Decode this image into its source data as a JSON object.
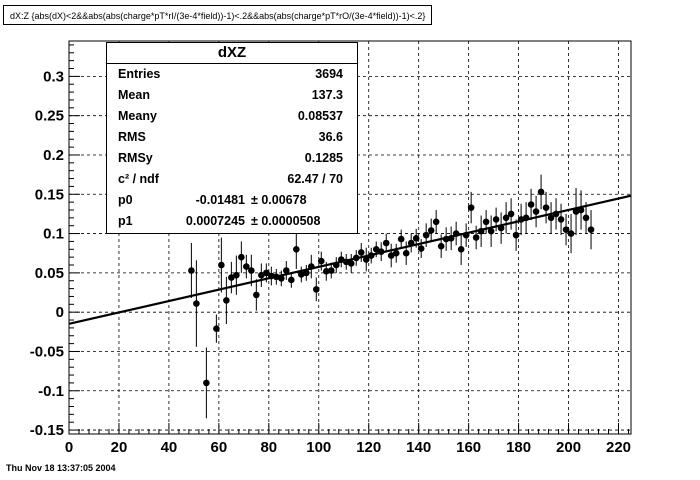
{
  "header": {
    "cut_title": "dX:Z {abs(dX)<2&&abs(abs(charge*pT*rI/(3e-4*field))-1)<.2&&abs(abs(charge*pT*rO/(3e-4*field))-1)<.2}"
  },
  "footer": {
    "timestamp": "Thu Nov 18 13:37:05 2004"
  },
  "stats": {
    "title": "dXZ",
    "entries_label": "Entries",
    "entries": "3694",
    "mean_label": "Mean",
    "mean": "137.3",
    "meany_label": "Meany",
    "meany": "0.08537",
    "rms_label": "RMS",
    "rms": "36.6",
    "rmsy_label": "RMSy",
    "rmsy": "0.1285",
    "chi2_label": "c² / ndf",
    "chi2": "62.47 / 70",
    "p0_label": "p0",
    "p0_value": "-0.01481",
    "p0_error": "± 0.00678",
    "p1_label": "p1",
    "p1_value": "0.0007245",
    "p1_error": "± 0.0000508"
  },
  "chart_data": {
    "type": "scatter",
    "xlim": [
      0,
      225
    ],
    "ylim": [
      -0.155,
      0.345
    ],
    "x_ticks": [
      0,
      20,
      40,
      60,
      80,
      100,
      120,
      140,
      160,
      180,
      200,
      220
    ],
    "y_ticks": [
      -0.15,
      -0.1,
      -0.05,
      0,
      0.05,
      0.1,
      0.15,
      0.2,
      0.25,
      0.3
    ],
    "x_tick_labels": [
      "0",
      "20",
      "40",
      "60",
      "80",
      "100",
      "120",
      "140",
      "160",
      "180",
      "200",
      "220"
    ],
    "y_tick_labels": [
      "-0.15",
      "-0.1",
      "-0.05",
      "0",
      "0.05",
      "0.1",
      "0.15",
      "0.2",
      "0.25",
      "0.3"
    ],
    "grid": true,
    "fit": {
      "p0": -0.01481,
      "p1": 0.0007245,
      "x_range": [
        0,
        225
      ]
    },
    "points": [
      {
        "x": 49,
        "y": 0.053,
        "e": 0.035
      },
      {
        "x": 51,
        "y": 0.011,
        "e": 0.055
      },
      {
        "x": 55,
        "y": -0.09,
        "e": 0.045
      },
      {
        "x": 59,
        "y": -0.021,
        "e": 0.018
      },
      {
        "x": 61,
        "y": 0.06,
        "e": 0.035
      },
      {
        "x": 63,
        "y": 0.015,
        "e": 0.03
      },
      {
        "x": 65,
        "y": 0.044,
        "e": 0.02
      },
      {
        "x": 67,
        "y": 0.047,
        "e": 0.025
      },
      {
        "x": 69,
        "y": 0.07,
        "e": 0.02
      },
      {
        "x": 71,
        "y": 0.058,
        "e": 0.015
      },
      {
        "x": 73,
        "y": 0.053,
        "e": 0.02
      },
      {
        "x": 75,
        "y": 0.022,
        "e": 0.02
      },
      {
        "x": 77,
        "y": 0.047,
        "e": 0.015
      },
      {
        "x": 79,
        "y": 0.05,
        "e": 0.012
      },
      {
        "x": 81,
        "y": 0.046,
        "e": 0.012
      },
      {
        "x": 83,
        "y": 0.045,
        "e": 0.01
      },
      {
        "x": 85,
        "y": 0.043,
        "e": 0.01
      },
      {
        "x": 87,
        "y": 0.053,
        "e": 0.012
      },
      {
        "x": 89,
        "y": 0.041,
        "e": 0.01
      },
      {
        "x": 91,
        "y": 0.08,
        "e": 0.025
      },
      {
        "x": 93,
        "y": 0.048,
        "e": 0.01
      },
      {
        "x": 95,
        "y": 0.05,
        "e": 0.01
      },
      {
        "x": 97,
        "y": 0.058,
        "e": 0.015
      },
      {
        "x": 99,
        "y": 0.029,
        "e": 0.015
      },
      {
        "x": 101,
        "y": 0.065,
        "e": 0.012
      },
      {
        "x": 103,
        "y": 0.052,
        "e": 0.012
      },
      {
        "x": 105,
        "y": 0.053,
        "e": 0.01
      },
      {
        "x": 107,
        "y": 0.06,
        "e": 0.01
      },
      {
        "x": 109,
        "y": 0.067,
        "e": 0.01
      },
      {
        "x": 111,
        "y": 0.064,
        "e": 0.01
      },
      {
        "x": 113,
        "y": 0.062,
        "e": 0.012
      },
      {
        "x": 115,
        "y": 0.069,
        "e": 0.01
      },
      {
        "x": 117,
        "y": 0.076,
        "e": 0.012
      },
      {
        "x": 119,
        "y": 0.067,
        "e": 0.015
      },
      {
        "x": 121,
        "y": 0.072,
        "e": 0.01
      },
      {
        "x": 123,
        "y": 0.08,
        "e": 0.01
      },
      {
        "x": 125,
        "y": 0.077,
        "e": 0.012
      },
      {
        "x": 127,
        "y": 0.088,
        "e": 0.012
      },
      {
        "x": 129,
        "y": 0.072,
        "e": 0.015
      },
      {
        "x": 131,
        "y": 0.075,
        "e": 0.012
      },
      {
        "x": 133,
        "y": 0.093,
        "e": 0.012
      },
      {
        "x": 135,
        "y": 0.075,
        "e": 0.015
      },
      {
        "x": 137,
        "y": 0.088,
        "e": 0.012
      },
      {
        "x": 139,
        "y": 0.094,
        "e": 0.012
      },
      {
        "x": 141,
        "y": 0.081,
        "e": 0.012
      },
      {
        "x": 143,
        "y": 0.098,
        "e": 0.015
      },
      {
        "x": 145,
        "y": 0.104,
        "e": 0.015
      },
      {
        "x": 147,
        "y": 0.115,
        "e": 0.015
      },
      {
        "x": 149,
        "y": 0.084,
        "e": 0.015
      },
      {
        "x": 151,
        "y": 0.093,
        "e": 0.015
      },
      {
        "x": 153,
        "y": 0.094,
        "e": 0.015
      },
      {
        "x": 155,
        "y": 0.1,
        "e": 0.015
      },
      {
        "x": 157,
        "y": 0.08,
        "e": 0.02
      },
      {
        "x": 159,
        "y": 0.098,
        "e": 0.015
      },
      {
        "x": 161,
        "y": 0.133,
        "e": 0.02
      },
      {
        "x": 163,
        "y": 0.095,
        "e": 0.015
      },
      {
        "x": 165,
        "y": 0.103,
        "e": 0.02
      },
      {
        "x": 167,
        "y": 0.115,
        "e": 0.015
      },
      {
        "x": 169,
        "y": 0.103,
        "e": 0.02
      },
      {
        "x": 171,
        "y": 0.118,
        "e": 0.015
      },
      {
        "x": 173,
        "y": 0.107,
        "e": 0.02
      },
      {
        "x": 175,
        "y": 0.12,
        "e": 0.02
      },
      {
        "x": 177,
        "y": 0.125,
        "e": 0.02
      },
      {
        "x": 179,
        "y": 0.098,
        "e": 0.02
      },
      {
        "x": 181,
        "y": 0.118,
        "e": 0.02
      },
      {
        "x": 183,
        "y": 0.12,
        "e": 0.02
      },
      {
        "x": 185,
        "y": 0.137,
        "e": 0.02
      },
      {
        "x": 187,
        "y": 0.128,
        "e": 0.02
      },
      {
        "x": 189,
        "y": 0.153,
        "e": 0.022
      },
      {
        "x": 191,
        "y": 0.133,
        "e": 0.02
      },
      {
        "x": 193,
        "y": 0.12,
        "e": 0.02
      },
      {
        "x": 195,
        "y": 0.125,
        "e": 0.02
      },
      {
        "x": 197,
        "y": 0.118,
        "e": 0.02
      },
      {
        "x": 199,
        "y": 0.105,
        "e": 0.02
      },
      {
        "x": 201,
        "y": 0.1,
        "e": 0.025
      },
      {
        "x": 203,
        "y": 0.128,
        "e": 0.03
      },
      {
        "x": 205,
        "y": 0.13,
        "e": 0.025
      },
      {
        "x": 207,
        "y": 0.12,
        "e": 0.02
      },
      {
        "x": 209,
        "y": 0.105,
        "e": 0.025
      }
    ]
  }
}
